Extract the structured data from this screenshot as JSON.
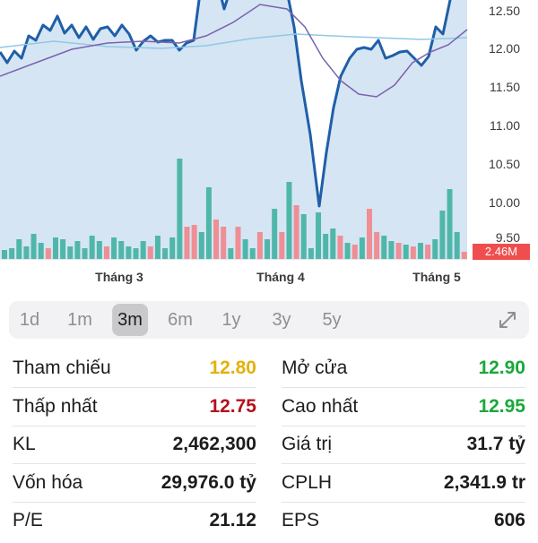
{
  "chart": {
    "y_ticks": [
      "12.50",
      "12.00",
      "11.50",
      "11.00",
      "10.50",
      "10.00",
      "9.50"
    ],
    "month_labels": [
      "Tháng 3",
      "Tháng 4",
      "Tháng 5"
    ],
    "volume_badge": "2.46M",
    "colors": {
      "price_line": "#1f5fa8",
      "price_fill": "#cfe0f1",
      "ma_short": "#7a62b0",
      "ma_long": "#8ec9e6",
      "vol_up": "#4fb7aa",
      "vol_down": "#ef8e95",
      "badge": "#f04e4e"
    }
  },
  "range_selector": {
    "options": [
      "1d",
      "1m",
      "3m",
      "6m",
      "1y",
      "3y",
      "5y"
    ],
    "selected": "3m",
    "expand_icon": "expand-icon"
  },
  "stats": {
    "left": [
      {
        "label": "Tham chiếu",
        "value": "12.80",
        "color": "#e3b10a"
      },
      {
        "label": "Thấp nhất",
        "value": "12.75",
        "color": "#b3111b"
      },
      {
        "label": "KL",
        "value": "2,462,300",
        "color": "#1c1c1e"
      },
      {
        "label": "Vốn hóa",
        "value": "29,976.0 tỷ",
        "color": "#1c1c1e"
      },
      {
        "label": "P/E",
        "value": "21.12",
        "color": "#1c1c1e"
      }
    ],
    "right": [
      {
        "label": "Mở cửa",
        "value": "12.90",
        "color": "#1aa83a"
      },
      {
        "label": "Cao nhất",
        "value": "12.95",
        "color": "#1aa83a"
      },
      {
        "label": "Giá trị",
        "value": "31.7 tỷ",
        "color": "#1c1c1e"
      },
      {
        "label": "CPLH",
        "value": "2,341.9 tr",
        "color": "#1c1c1e"
      },
      {
        "label": "EPS",
        "value": "606",
        "color": "#1c1c1e"
      }
    ]
  }
}
